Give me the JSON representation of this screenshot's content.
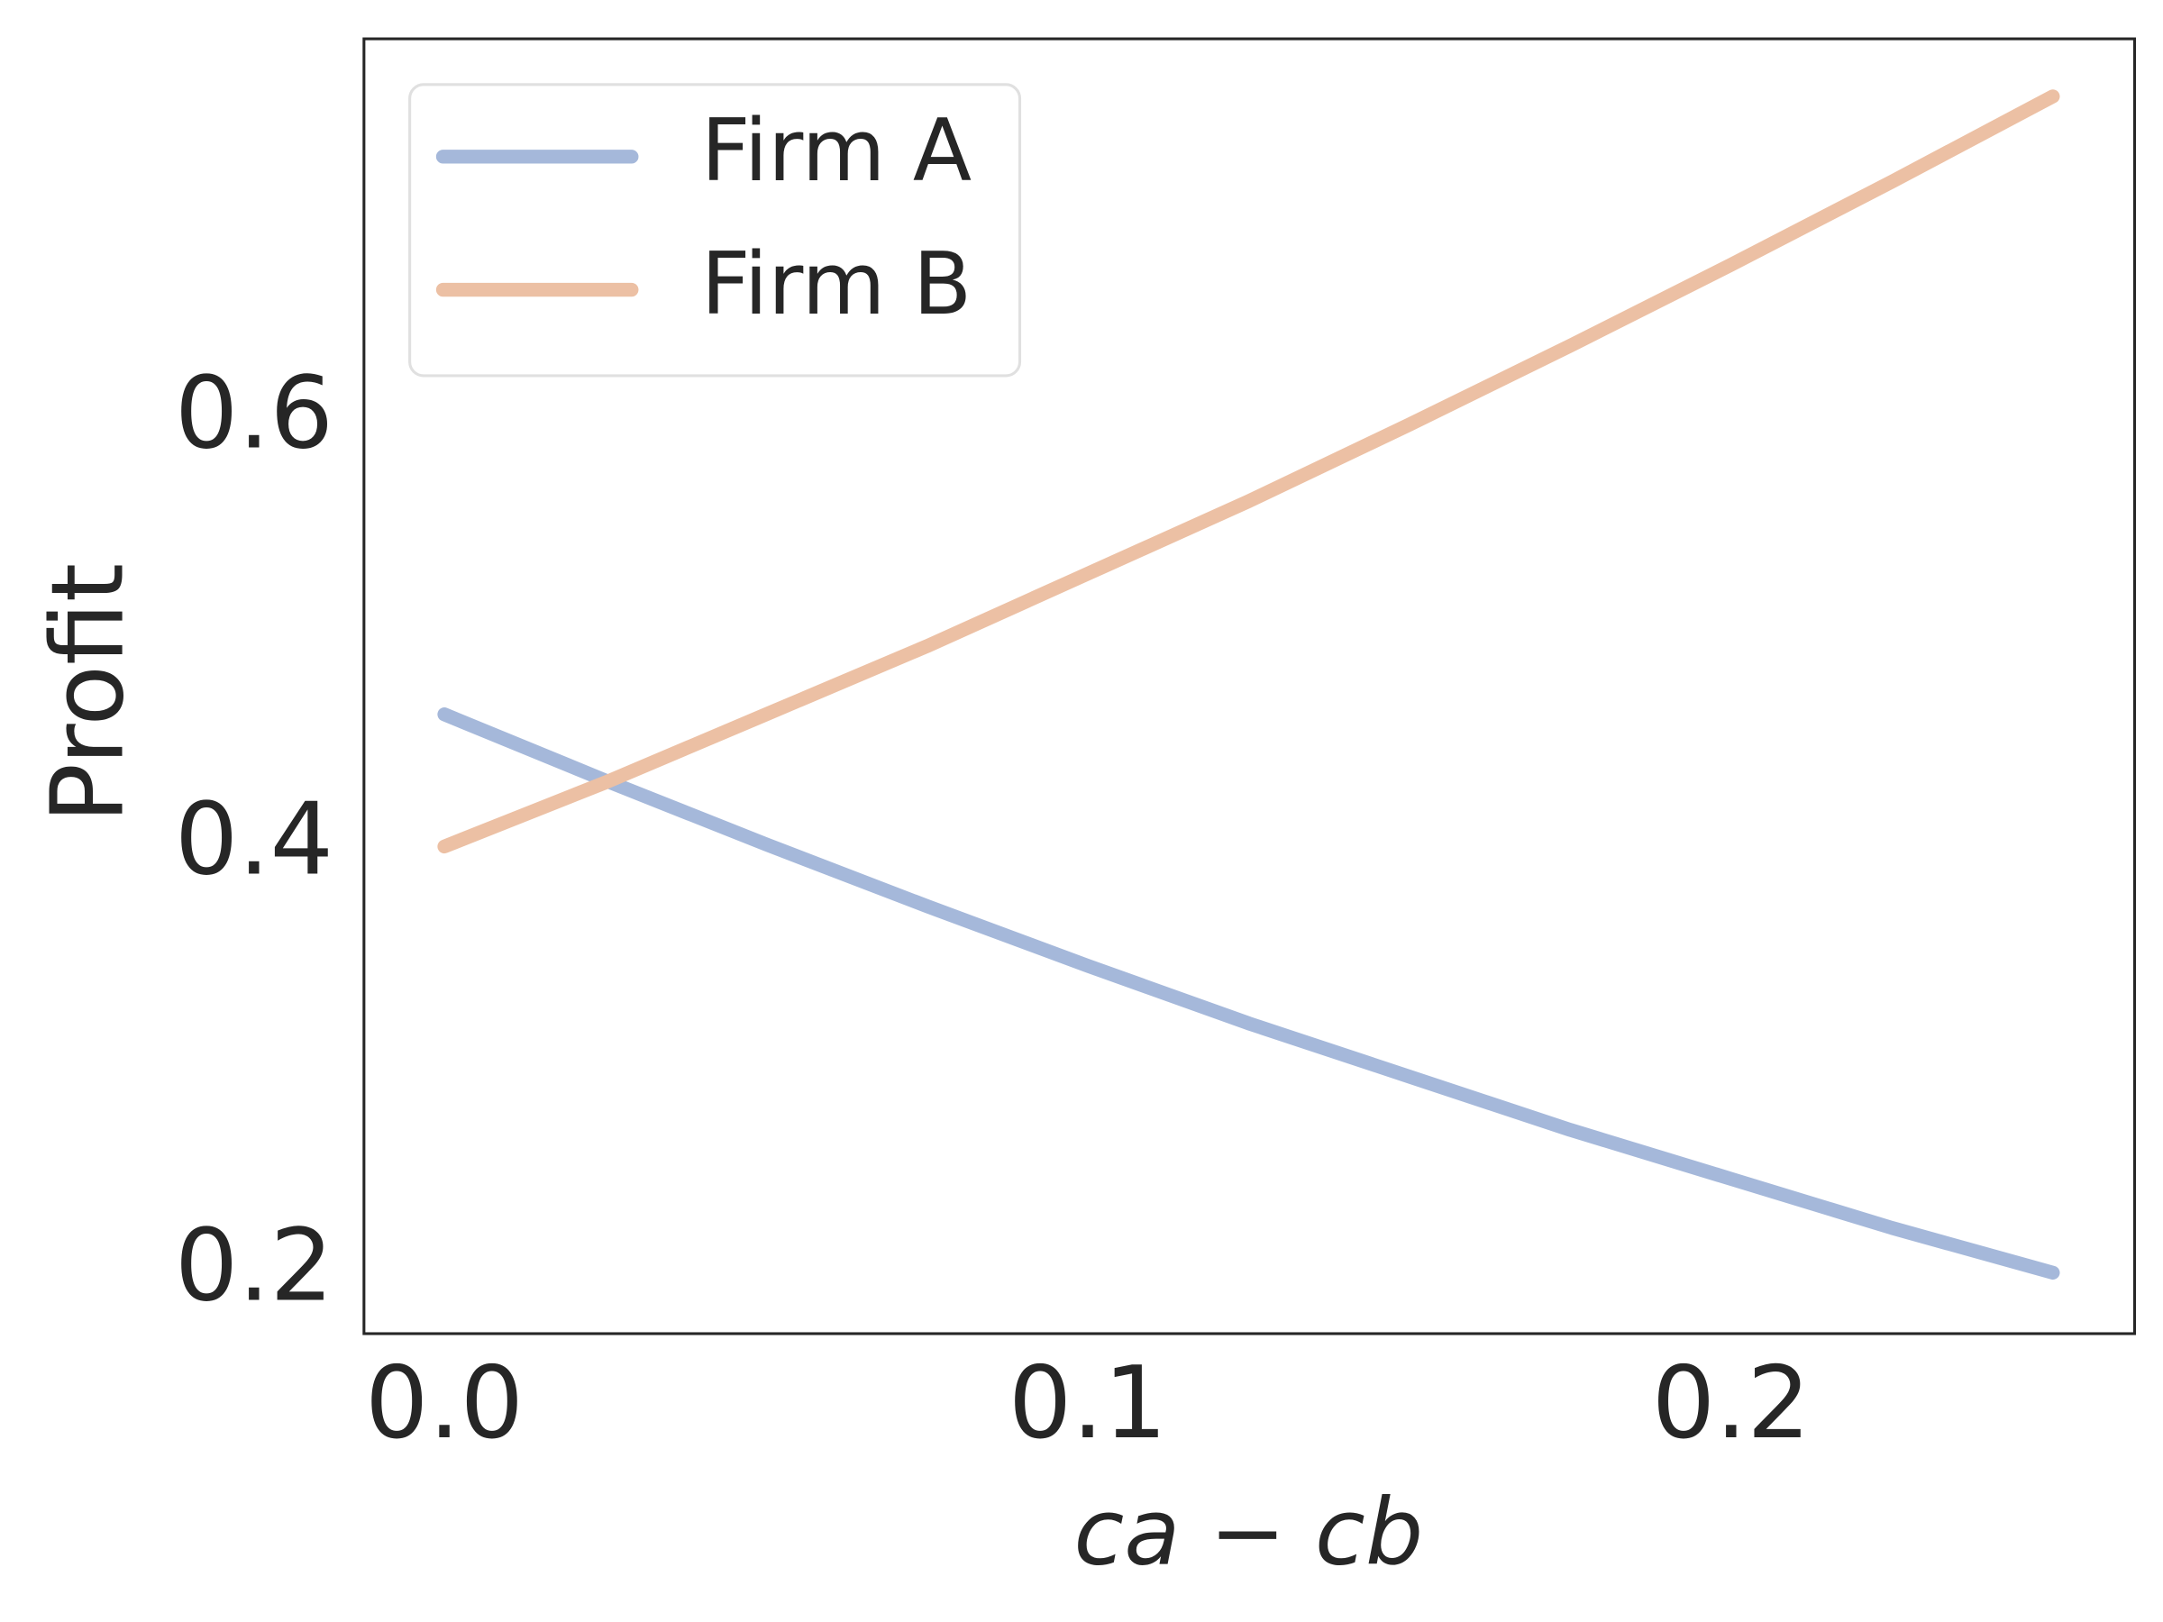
{
  "chart_data": {
    "type": "line",
    "xlabel": "ca − cb",
    "ylabel": "Profit",
    "x": [
      0,
      0.025,
      0.05,
      0.075,
      0.1,
      0.125,
      0.15,
      0.175,
      0.2,
      0.225,
      0.25
    ],
    "series": [
      {
        "name": "Firm A",
        "color": "#a5b8da",
        "values": [
          0.462,
          0.431,
          0.401,
          0.372,
          0.344,
          0.317,
          0.292,
          0.267,
          0.244,
          0.221,
          0.2
        ]
      },
      {
        "name": "Firm B",
        "color": "#ecc0a4",
        "values": [
          0.4,
          0.43,
          0.462,
          0.494,
          0.528,
          0.562,
          0.598,
          0.635,
          0.673,
          0.712,
          0.752
        ]
      }
    ],
    "xlim": [
      -0.0125,
      0.2627
    ],
    "ylim": [
      0.1714,
      0.779
    ],
    "xticks": [
      {
        "value": 0,
        "label": "0.0"
      },
      0.1,
      0.2
    ],
    "yticks": [
      0.2,
      0.4,
      0.6
    ],
    "legend": "upper left",
    "grid": false
  }
}
